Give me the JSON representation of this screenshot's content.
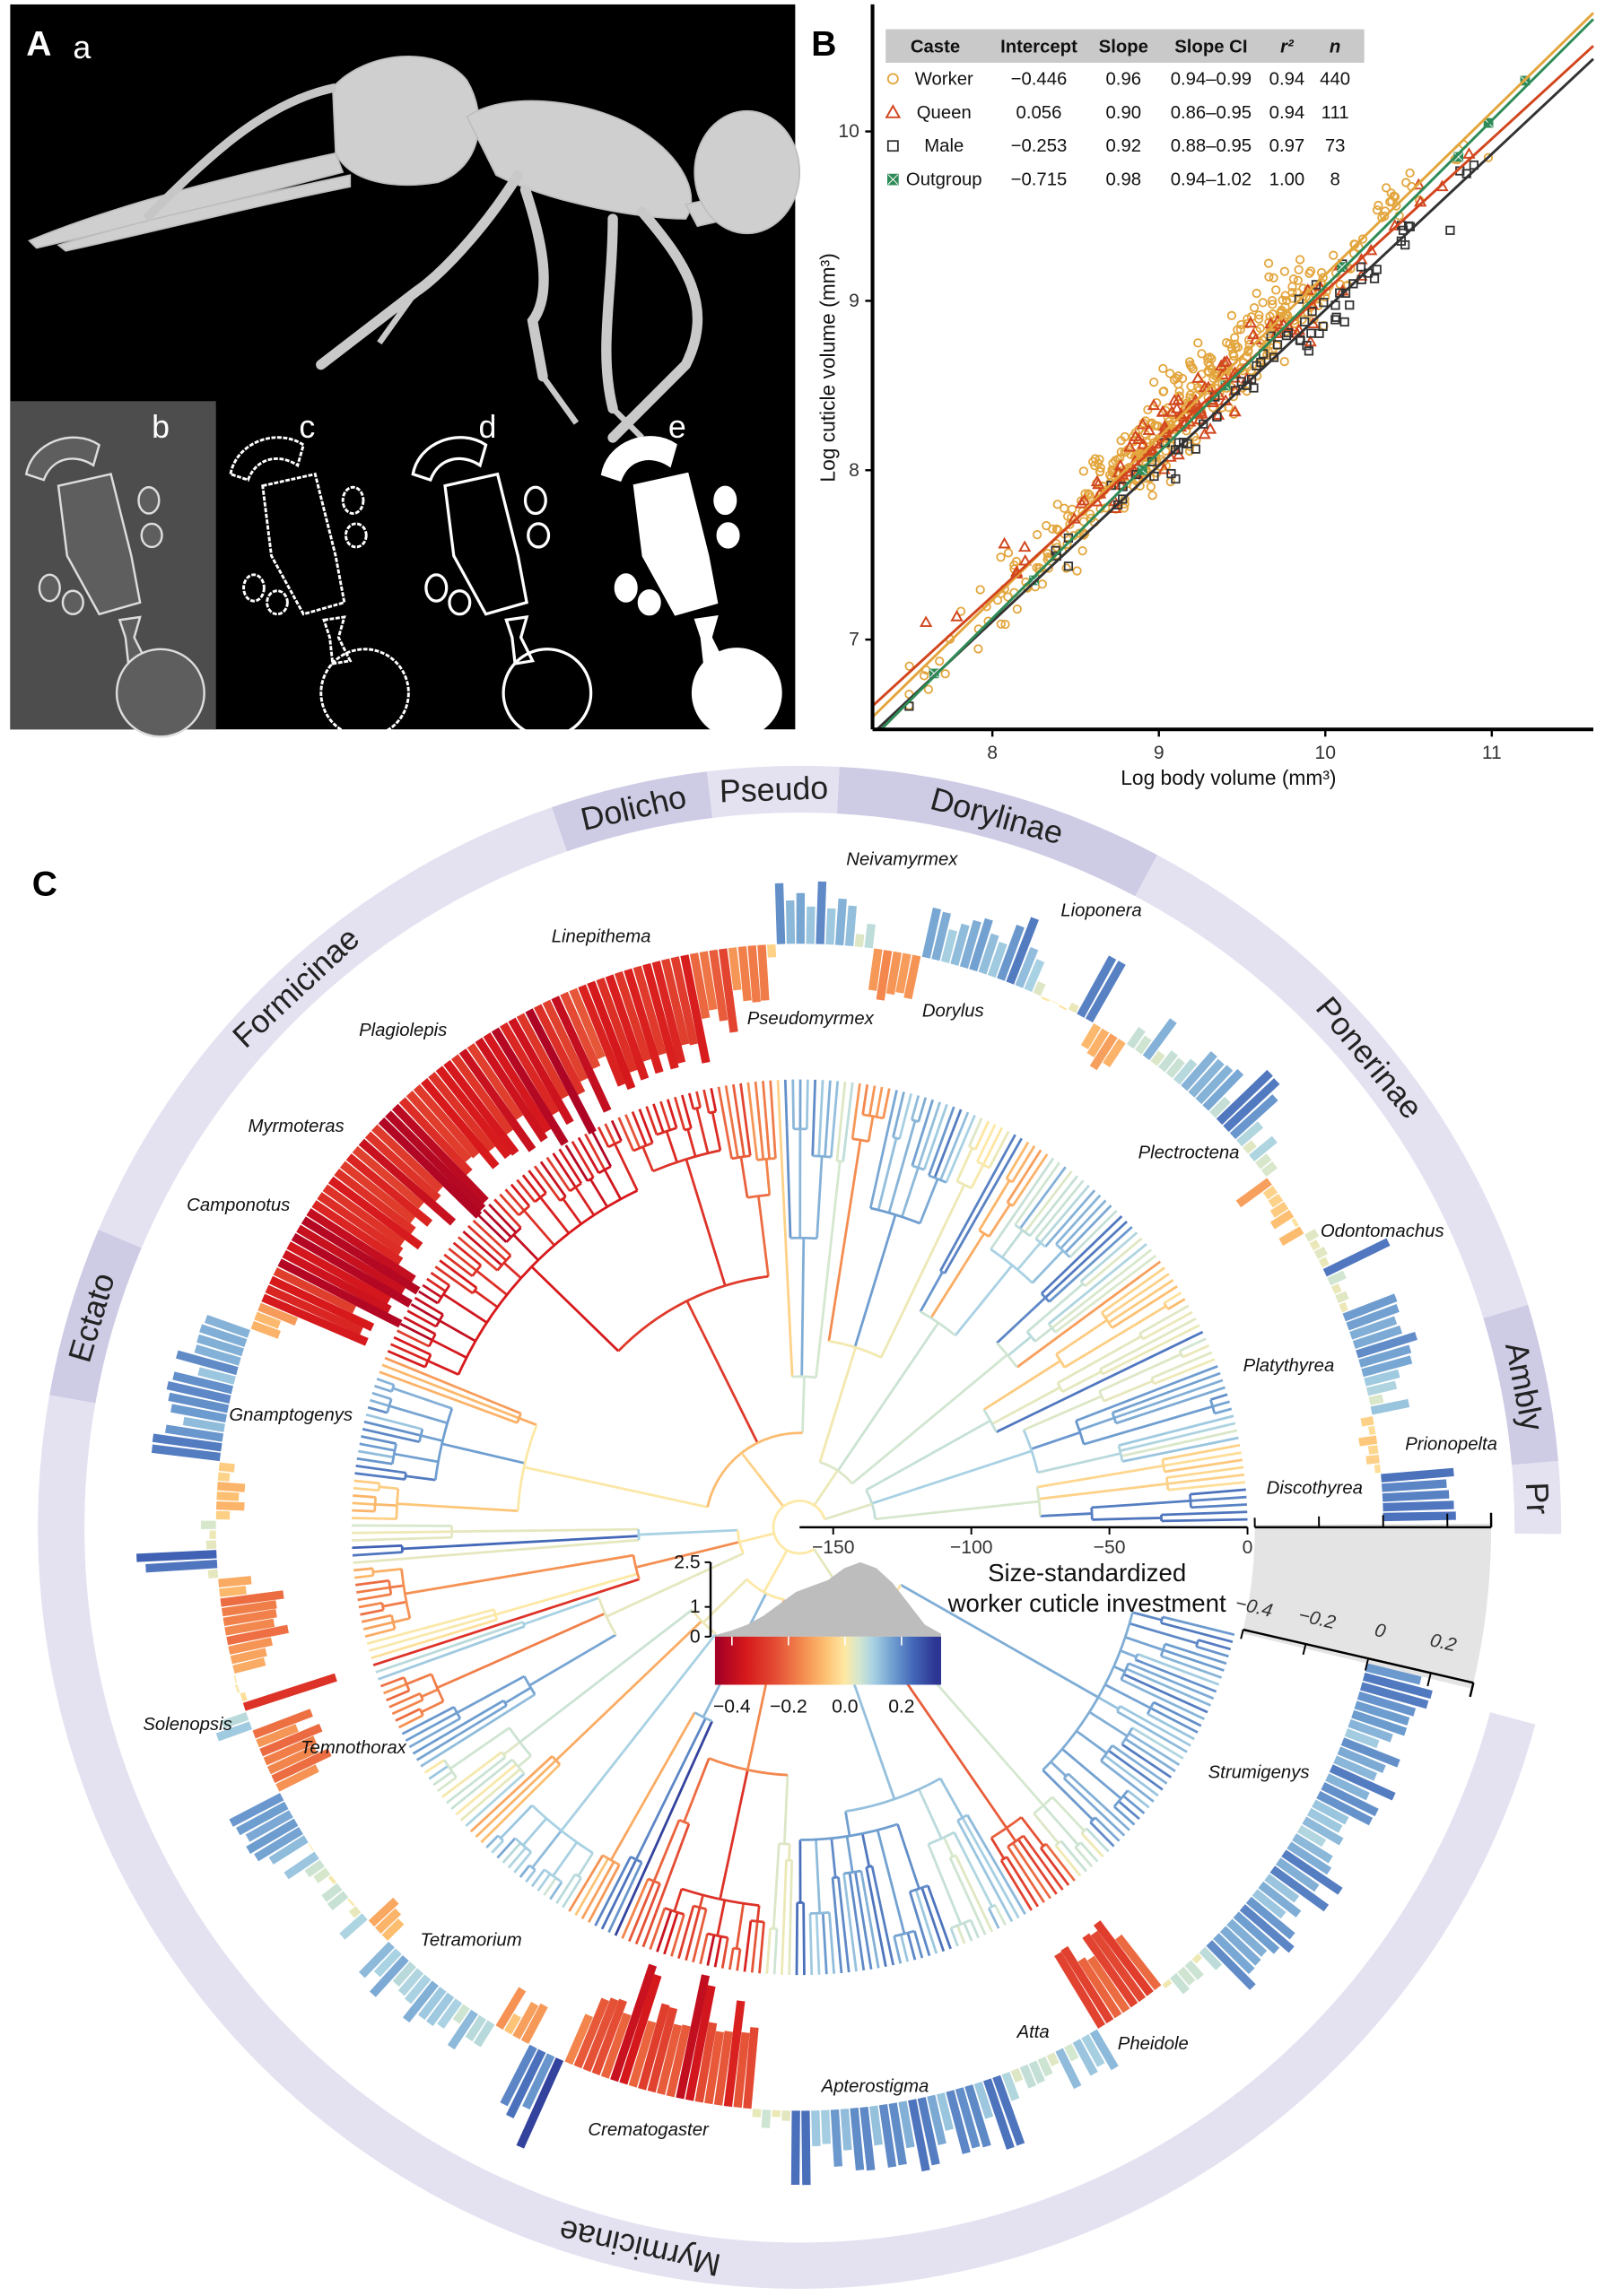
{
  "panel_labels": {
    "A": "A",
    "B": "B",
    "C": "C",
    "a": "a",
    "b": "b",
    "c": "c",
    "d": "d",
    "e": "e"
  },
  "chart_data": [
    {
      "panel": "B",
      "type": "scatter",
      "xlabel": "Log body volume (mm³)",
      "ylabel": "Log cuticle volume (mm³)",
      "xlim": [
        7.28,
        11.61
      ],
      "ylim": [
        6.47,
        10.75
      ],
      "xticks": [
        8,
        9,
        10,
        11
      ],
      "yticks": [
        7,
        8,
        9,
        10
      ],
      "grid": false,
      "legend": "top-left",
      "table": {
        "headers": [
          "Caste",
          "Intercept",
          "Slope",
          "Slope CI",
          "r²",
          "n"
        ],
        "rows": [
          [
            "Worker",
            "−0.446",
            "0.96",
            "0.94–0.99",
            "0.94",
            "440"
          ],
          [
            "Queen",
            "0.056",
            "0.90",
            "0.86–0.95",
            "0.94",
            "111"
          ],
          [
            "Male",
            "−0.253",
            "0.92",
            "0.88–0.95",
            "0.97",
            "73"
          ],
          [
            "Outgroup",
            "−0.715",
            "0.98",
            "0.94–1.02",
            "1.00",
            "8"
          ]
        ]
      },
      "series": [
        {
          "name": "Worker",
          "marker": "circle",
          "color": "#e3a53c",
          "intercept": -0.446,
          "slope": 0.96,
          "n": 440,
          "x_center": 9.1,
          "x_spread": 0.65,
          "residual_sd": 0.13
        },
        {
          "name": "Queen",
          "marker": "triangle",
          "color": "#d2461e",
          "intercept": 0.056,
          "slope": 0.9,
          "n": 111,
          "x_center": 9.3,
          "x_spread": 0.55,
          "residual_sd": 0.12
        },
        {
          "name": "Male",
          "marker": "square",
          "color": "#333333",
          "intercept": -0.253,
          "slope": 0.92,
          "n": 73,
          "x_center": 9.6,
          "x_spread": 0.7,
          "residual_sd": 0.09
        },
        {
          "name": "Outgroup",
          "marker": "crossed-square",
          "color": "#2e8b57",
          "intercept": -0.715,
          "slope": 0.98,
          "n": 8,
          "points": [
            [
              7.65,
              6.8
            ],
            [
              8.25,
              7.35
            ],
            [
              8.9,
              8.0
            ],
            [
              9.4,
              8.5
            ],
            [
              10.1,
              9.2
            ],
            [
              10.8,
              9.85
            ],
            [
              10.98,
              10.05
            ],
            [
              11.2,
              10.3
            ]
          ]
        }
      ]
    },
    {
      "panel": "C",
      "type": "bar",
      "layout": "circular phylogeny with radial bars",
      "value_label": [
        "Size-standardized",
        "worker cuticle investment"
      ],
      "time_axis_ticks": [
        "−150",
        "−100",
        "−50",
        "0"
      ],
      "bar_axis_ticks": [
        "−0.4",
        "−0.2",
        "0",
        "0.2"
      ],
      "bar_range": [
        -0.4,
        0.33
      ],
      "subfamilies": [
        {
          "name": "Pr",
          "shade": "#e4e2f1"
        },
        {
          "name": "Ambly",
          "shade": "#cecbe5"
        },
        {
          "name": "Ponerinae",
          "shade": "#e4e2f1"
        },
        {
          "name": "Dorylinae",
          "shade": "#cecbe5"
        },
        {
          "name": "Pseudo",
          "shade": "#e4e2f1"
        },
        {
          "name": "Dolicho",
          "shade": "#cecbe5"
        },
        {
          "name": "Formicinae",
          "shade": "#e4e2f1"
        },
        {
          "name": "Ectato",
          "shade": "#cecbe5"
        },
        {
          "name": "Myrmicinae",
          "shade": "#e4e2f1"
        }
      ],
      "genus_labels": [
        "Neivamyrmex",
        "Lioponera",
        "Linepithema",
        "Pseudomyrmex",
        "Dorylus",
        "Plagiolepis",
        "Myrmoteras",
        "Plectroctena",
        "Camponotus",
        "Odontomachus",
        "Gnamptogenys",
        "Platythyrea",
        "Prionopelta",
        "Discothyrea",
        "Solenopsis",
        "Temnothorax",
        "Strumigenys",
        "Tetramorium",
        "Atta",
        "Pheidole",
        "Apterostigma",
        "Crematogaster"
      ],
      "clades_in_tip_order": [
        {
          "tips": 5,
          "mean": 0.21,
          "spread": 0.02,
          "genus": "Discothyrea"
        },
        {
          "tips": 3,
          "mean": -0.04,
          "spread": 0.03
        },
        {
          "tips": 3,
          "mean": -0.03,
          "spread": 0.04,
          "genus": "Prionopelta"
        },
        {
          "tips": 4,
          "mean": 0.08,
          "spread": 0.04
        },
        {
          "tips": 7,
          "mean": 0.18,
          "spread": 0.04,
          "genus": "Platythyrea"
        },
        {
          "tips": 4,
          "mean": 0.04,
          "spread": 0.02
        },
        {
          "tips": 1,
          "mean": 0.22,
          "spread": 0.0
        },
        {
          "tips": 4,
          "mean": 0.03,
          "spread": 0.02
        },
        {
          "tips": 6,
          "mean": -0.05,
          "spread": 0.05,
          "genus": "Odontomachus"
        },
        {
          "tips": 1,
          "mean": -0.12,
          "spread": 0.0
        },
        {
          "tips": 5,
          "mean": 0.08,
          "spread": 0.05
        },
        {
          "tips": 3,
          "mean": 0.2,
          "spread": 0.03,
          "genus": "Plectroctena"
        },
        {
          "tips": 12,
          "mean": 0.1,
          "spread": 0.06
        },
        {
          "tips": 4,
          "mean": -0.1,
          "spread": 0.03
        },
        {
          "tips": 2,
          "mean": 0.18,
          "spread": 0.03
        },
        {
          "tips": 5,
          "mean": 0.02,
          "spread": 0.03
        },
        {
          "tips": 12,
          "mean": 0.17,
          "spread": 0.07,
          "genus": "Lioponera"
        },
        {
          "tips": 5,
          "mean": -0.15,
          "spread": 0.03,
          "genus": "Dorylus"
        },
        {
          "tips": 2,
          "mean": 0.05,
          "spread": 0.03
        },
        {
          "tips": 8,
          "mean": 0.15,
          "spread": 0.06,
          "genus": "Neivamyrmex"
        },
        {
          "tips": 1,
          "mean": -0.04,
          "spread": 0.0
        },
        {
          "tips": 8,
          "mean": -0.2,
          "spread": 0.08,
          "genus": "Pseudomyrmex"
        },
        {
          "tips": 14,
          "mean": -0.3,
          "spread": 0.07,
          "genus": "Linepithema"
        },
        {
          "tips": 45,
          "mean": -0.35,
          "spread": 0.08,
          "genus": "Plagiolepis / Myrmoteras / Camponotus"
        },
        {
          "tips": 3,
          "mean": -0.1,
          "spread": 0.03
        },
        {
          "tips": 14,
          "mean": 0.17,
          "spread": 0.06,
          "genus": "Gnamptogenys"
        },
        {
          "tips": 6,
          "mean": -0.06,
          "spread": 0.03
        },
        {
          "tips": 3,
          "mean": 0.03,
          "spread": 0.02
        },
        {
          "tips": 2,
          "mean": 0.24,
          "spread": 0.02
        },
        {
          "tips": 1,
          "mean": 0.03,
          "spread": 0.0
        },
        {
          "tips": 10,
          "mean": -0.14,
          "spread": 0.06
        },
        {
          "tips": 3,
          "mean": 0.0,
          "spread": 0.02
        },
        {
          "tips": 1,
          "mean": -0.3,
          "spread": 0.0
        },
        {
          "tips": 2,
          "mean": 0.1,
          "spread": 0.02
        },
        {
          "tips": 7,
          "mean": -0.17,
          "spread": 0.05,
          "genus": "Solenopsis"
        },
        {
          "tips": 6,
          "mean": 0.16,
          "spread": 0.04,
          "genus": "Temnothorax"
        },
        {
          "tips": 10,
          "mean": 0.06,
          "spread": 0.06
        },
        {
          "tips": 3,
          "mean": -0.1,
          "spread": 0.03
        },
        {
          "tips": 14,
          "mean": 0.1,
          "spread": 0.06,
          "genus": "Tetramorium"
        },
        {
          "tips": 4,
          "mean": -0.1,
          "spread": 0.04
        },
        {
          "tips": 3,
          "mean": 0.2,
          "spread": 0.03
        },
        {
          "tips": 1,
          "mean": 0.3,
          "spread": 0.0
        },
        {
          "tips": 4,
          "mean": -0.2,
          "spread": 0.05
        },
        {
          "tips": 16,
          "mean": -0.3,
          "spread": 0.1,
          "genus": "Crematogaster"
        },
        {
          "tips": 4,
          "mean": 0.04,
          "spread": 0.02
        },
        {
          "tips": 22,
          "mean": 0.17,
          "spread": 0.07,
          "genus": "Apterostigma"
        },
        {
          "tips": 8,
          "mean": 0.08,
          "spread": 0.05
        },
        {
          "tips": 3,
          "mean": 0.12,
          "spread": 0.03,
          "genus": "Atta"
        },
        {
          "tips": 8,
          "mean": -0.22,
          "spread": 0.06,
          "genus": "Pheidole"
        },
        {
          "tips": 6,
          "mean": 0.05,
          "spread": 0.04
        },
        {
          "tips": 34,
          "mean": 0.15,
          "spread": 0.07,
          "genus": "Strumigenys"
        }
      ],
      "legend": {
        "density_ticks": [
          "0",
          "1",
          "2.5"
        ],
        "color_ticks": [
          "−0.4",
          "−0.2",
          "0.0",
          "0.2"
        ],
        "color_range": [
          -0.46,
          0.34
        ],
        "density_values": [
          0.05,
          0.2,
          0.4,
          0.7,
          1.1,
          1.5,
          1.7,
          1.9,
          2.3,
          2.5,
          2.3,
          1.8,
          1.1,
          0.4,
          0.1
        ],
        "colormap": [
          [
            -0.45,
            "#a50026"
          ],
          [
            -0.35,
            "#d7191c"
          ],
          [
            -0.25,
            "#e34a33"
          ],
          [
            -0.15,
            "#f48b4f"
          ],
          [
            -0.07,
            "#fdbf71"
          ],
          [
            0.0,
            "#fee8a4"
          ],
          [
            0.05,
            "#d4e7cf"
          ],
          [
            0.1,
            "#a8d1e3"
          ],
          [
            0.17,
            "#6f9ed0"
          ],
          [
            0.24,
            "#4468b8"
          ],
          [
            0.32,
            "#2d3594"
          ]
        ]
      }
    }
  ]
}
